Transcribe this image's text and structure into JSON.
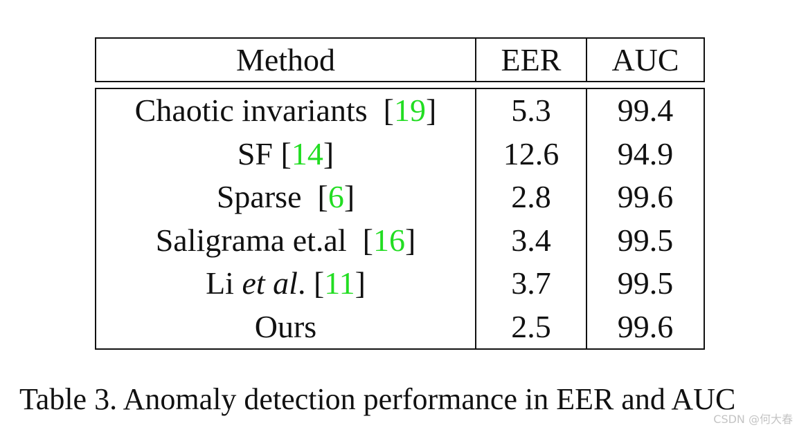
{
  "table": {
    "header": [
      "Method",
      "EER",
      "AUC"
    ],
    "rows": [
      {
        "method": "Chaotic invariants",
        "ref": "19",
        "eer": "5.3",
        "auc": "99.4"
      },
      {
        "method": "SF",
        "ref": "14",
        "eer": "12.6",
        "auc": "94.9"
      },
      {
        "method": "Sparse",
        "ref": "6",
        "eer": "2.8",
        "auc": "99.6"
      },
      {
        "method": "Saligrama et.al",
        "ref": "16",
        "eer": "3.4",
        "auc": "99.5"
      },
      {
        "method_prefix": "Li",
        "method_italic": "et al",
        "method_suffix": ".",
        "ref": "11",
        "eer": "3.7",
        "auc": "99.5"
      },
      {
        "method": "Ours",
        "eer": "2.5",
        "auc": "99.6"
      }
    ],
    "colors": {
      "citation": "#22dd22",
      "text": "#111111"
    }
  },
  "caption": "Table 3. Anomaly detection performance in EER and AUC",
  "watermark": "CSDN @何大春"
}
